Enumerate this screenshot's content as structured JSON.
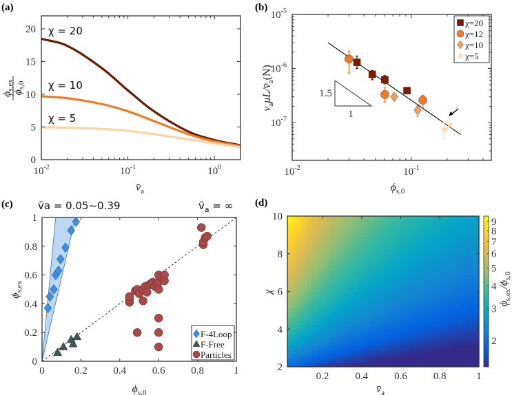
{
  "chart_data": [
    {
      "panel": "(a)",
      "type": "line",
      "xscale": "log",
      "xlim": [
        0.01,
        2
      ],
      "ylim": [
        0,
        22
      ],
      "xticks": [
        {
          "base": "10",
          "exp": "-2",
          "v": 0.01
        },
        {
          "base": "10",
          "exp": "-1",
          "v": 0.1
        },
        {
          "base": "10",
          "exp": "0",
          "v": 1
        }
      ],
      "yticks": [
        "0",
        "5",
        "10",
        "15",
        "20"
      ],
      "xlabel": {
        "main": "v̄",
        "sub": "a"
      },
      "ylabel": {
        "num": "ϕ",
        "num_sub": "s,ex",
        "den": "ϕ",
        "den_sub": "s,0"
      },
      "x": [
        0.01,
        0.02,
        0.05,
        0.1,
        0.2,
        0.5,
        1,
        2
      ],
      "series": [
        {
          "name": "χ = 20",
          "color": "#6b1a00",
          "values": [
            18.5,
            17.4,
            14.0,
            10.6,
            7.4,
            4.3,
            3.0,
            2.2
          ]
        },
        {
          "name": "χ = 10",
          "color": "#f47a20",
          "values": [
            9.7,
            9.4,
            8.5,
            7.4,
            5.9,
            3.9,
            2.8,
            2.1
          ]
        },
        {
          "name": "χ = 5",
          "color": "#fcd2a6",
          "values": [
            4.95,
            4.9,
            4.7,
            4.4,
            3.9,
            3.1,
            2.5,
            1.9
          ]
        }
      ]
    },
    {
      "panel": "(b)",
      "type": "scatter",
      "xscale": "log",
      "yscale": "log",
      "xlim": [
        0.01,
        0.47
      ],
      "ylim": [
        2e-08,
        1e-05
      ],
      "xticks": [
        {
          "base": "10",
          "exp": "-2",
          "v": 0.01
        },
        {
          "base": "10",
          "exp": "-1",
          "v": 0.1
        }
      ],
      "yticks": [
        {
          "base": "10",
          "exp": "-5",
          "v": 1e-05
        },
        {
          "base": "10",
          "exp": "-6",
          "v": 1e-06
        },
        {
          "base": "10",
          "exp": "-7",
          "v": 1e-07
        }
      ],
      "xlabel": {
        "main": "ϕ",
        "sub": "s,0"
      },
      "ylabel": "v_a μL / v̄_a (N)",
      "ylabel_parts": {
        "a": "v",
        "a_sub": "a",
        "b": "μL/",
        "c": "v̄",
        "c_sub": "a",
        "d": "(N)"
      },
      "series": [
        {
          "name": "χ=20",
          "marker": "square",
          "color": "#7a1c05",
          "points": [
            [
              0.035,
              1.3e-06,
              1.7e-06,
              1e-06
            ],
            [
              0.047,
              7.8e-07,
              9.2e-07,
              6.2e-07
            ],
            [
              0.06,
              6.2e-07,
              7.4e-07,
              5.2e-07
            ],
            [
              0.092,
              3.9e-07,
              4.4e-07,
              3.5e-07
            ]
          ]
        },
        {
          "name": "χ=12",
          "marker": "circle",
          "color": "#f07a2a",
          "points": [
            [
              0.03,
              1.5e-06,
              2.1e-06,
              8.2e-07
            ],
            [
              0.06,
              3.3e-07,
              4.4e-07,
              2.4e-07
            ],
            [
              0.125,
              2.6e-07,
              3.2e-07,
              1.9e-07
            ]
          ]
        },
        {
          "name": "χ=10",
          "marker": "diamond",
          "color": "#f5a05a",
          "points": [
            [
              0.072,
              3e-07,
              3e-07,
              3e-07
            ],
            [
              0.113,
              1.7e-07,
              2e-07,
              1.3e-07
            ]
          ]
        },
        {
          "name": "χ=5",
          "marker": "star",
          "color": "#fcd9b4",
          "points": [
            [
              0.19,
              7.5e-08,
              1e-07,
              5e-08
            ],
            [
              0.21,
              9e-08,
              9e-08,
              9e-08
            ]
          ]
        }
      ],
      "fit_line": [
        [
          0.02,
          3e-06
        ],
        [
          0.26,
          6e-08
        ]
      ],
      "slope_triangle": {
        "rise": "1.5",
        "run": "1"
      },
      "legend": "top-right"
    },
    {
      "panel": "(c)",
      "type": "scatter",
      "xlim": [
        0,
        1
      ],
      "ylim": [
        0,
        1
      ],
      "xticks": [
        "0",
        "0.2",
        "0.4",
        "0.6",
        "0.8",
        "1"
      ],
      "yticks": [
        "0",
        "0.2",
        "0.4",
        "0.6",
        "0.8",
        "1"
      ],
      "xlabel": {
        "main": "ϕ",
        "sub": "s,0"
      },
      "ylabel": {
        "main": "ϕ",
        "sub": "s,ex"
      },
      "annotation_left": "v̄a = 0.05~0.39",
      "annotation_left_parts": {
        "main": "v̄",
        "sub": "a",
        "rest": " = 0.05~0.39"
      },
      "annotation_right_parts": {
        "main": "v̄",
        "sub": "a",
        "rest": " = ∞"
      },
      "shaded_band_slopes": [
        14.3,
        5.8
      ],
      "series": [
        {
          "name": "F-4Loop",
          "marker": "diamond",
          "color": "#3b8ee0",
          "points": [
            [
              0.03,
              0.37
            ],
            [
              0.04,
              0.45
            ],
            [
              0.06,
              0.5
            ],
            [
              0.07,
              0.6
            ],
            [
              0.085,
              0.63
            ],
            [
              0.095,
              0.71
            ],
            [
              0.12,
              0.79
            ],
            [
              0.15,
              0.91
            ],
            [
              0.175,
              0.97
            ]
          ]
        },
        {
          "name": "F-Free",
          "marker": "triangle",
          "color": "#3f5a57",
          "points": [
            [
              0.08,
              0.06
            ],
            [
              0.11,
              0.1
            ],
            [
              0.15,
              0.15
            ],
            [
              0.16,
              0.12
            ],
            [
              0.18,
              0.17
            ]
          ]
        },
        {
          "name": "Particles",
          "marker": "circle",
          "color": "#a84a4a",
          "points": [
            [
              0.45,
              0.41
            ],
            [
              0.45,
              0.43
            ],
            [
              0.45,
              0.45
            ],
            [
              0.48,
              0.49
            ],
            [
              0.49,
              0.5
            ],
            [
              0.5,
              0.47
            ],
            [
              0.52,
              0.42
            ],
            [
              0.52,
              0.5
            ],
            [
              0.53,
              0.52
            ],
            [
              0.54,
              0.48
            ],
            [
              0.55,
              0.53
            ],
            [
              0.56,
              0.54
            ],
            [
              0.57,
              0.55
            ],
            [
              0.58,
              0.52
            ],
            [
              0.59,
              0.54
            ],
            [
              0.6,
              0.5
            ],
            [
              0.6,
              0.55
            ],
            [
              0.6,
              0.6
            ],
            [
              0.62,
              0.58
            ],
            [
              0.63,
              0.56
            ],
            [
              0.63,
              0.6
            ],
            [
              0.82,
              0.93
            ],
            [
              0.83,
              0.81
            ],
            [
              0.83,
              0.83
            ],
            [
              0.84,
              0.86
            ],
            [
              0.85,
              0.87
            ],
            [
              0.49,
              0.2
            ],
            [
              0.6,
              0.3
            ],
            [
              0.6,
              0.2
            ],
            [
              0.6,
              0.1
            ]
          ]
        }
      ],
      "reference_line": "y = x",
      "legend": "bottom-right"
    },
    {
      "panel": "(d)",
      "type": "heatmap",
      "xlim": [
        0.02,
        1
      ],
      "ylim": [
        2,
        10
      ],
      "xticks": [
        "0.2",
        "0.4",
        "0.6",
        "0.8",
        "1"
      ],
      "yticks": [
        "2",
        "4",
        "6",
        "8",
        "10"
      ],
      "xlabel": {
        "main": "v̄",
        "sub": "a"
      },
      "ylabel": "χ",
      "colorbar_label": {
        "a": "ϕ",
        "a_sub": "s,ex",
        "b": "/ϕ",
        "b_sub": "s,0"
      },
      "colorbar_scale": "log",
      "clim": [
        1.44,
        9.65
      ],
      "colorbar_ticks": [
        "2",
        "3",
        "4",
        "5",
        "6",
        "7",
        "8",
        "9"
      ],
      "colormap": "parula",
      "x": [
        0.05,
        0.15,
        0.25,
        0.35,
        0.45,
        0.55,
        0.65,
        0.75,
        0.85,
        0.95
      ],
      "y": [
        2,
        3,
        4,
        5,
        6,
        7,
        8,
        9,
        10
      ],
      "z": [
        [
          1.83,
          1.63,
          1.5,
          1.42,
          1.36,
          1.31,
          1.28,
          1.25,
          1.23,
          1.21
        ],
        [
          2.67,
          2.25,
          2.0,
          1.83,
          1.71,
          1.63,
          1.56,
          1.5,
          1.45,
          1.42
        ],
        [
          3.5,
          2.88,
          2.5,
          2.25,
          2.07,
          1.94,
          1.83,
          1.75,
          1.68,
          1.63
        ],
        [
          4.33,
          3.5,
          3.0,
          2.67,
          2.43,
          2.25,
          2.11,
          2.0,
          1.91,
          1.83
        ],
        [
          5.17,
          4.13,
          3.5,
          3.08,
          2.79,
          2.56,
          2.39,
          2.25,
          2.14,
          2.04
        ],
        [
          6.0,
          4.75,
          4.0,
          3.5,
          3.14,
          2.88,
          2.67,
          2.5,
          2.36,
          2.25
        ],
        [
          6.83,
          5.38,
          4.5,
          3.92,
          3.5,
          3.19,
          2.94,
          2.75,
          2.59,
          2.46
        ],
        [
          7.67,
          6.0,
          5.0,
          4.33,
          3.86,
          3.5,
          3.22,
          3.0,
          2.82,
          2.67
        ],
        [
          8.9,
          6.63,
          5.5,
          4.75,
          4.29,
          3.81,
          3.5,
          3.25,
          3.05,
          2.88
        ]
      ]
    }
  ]
}
